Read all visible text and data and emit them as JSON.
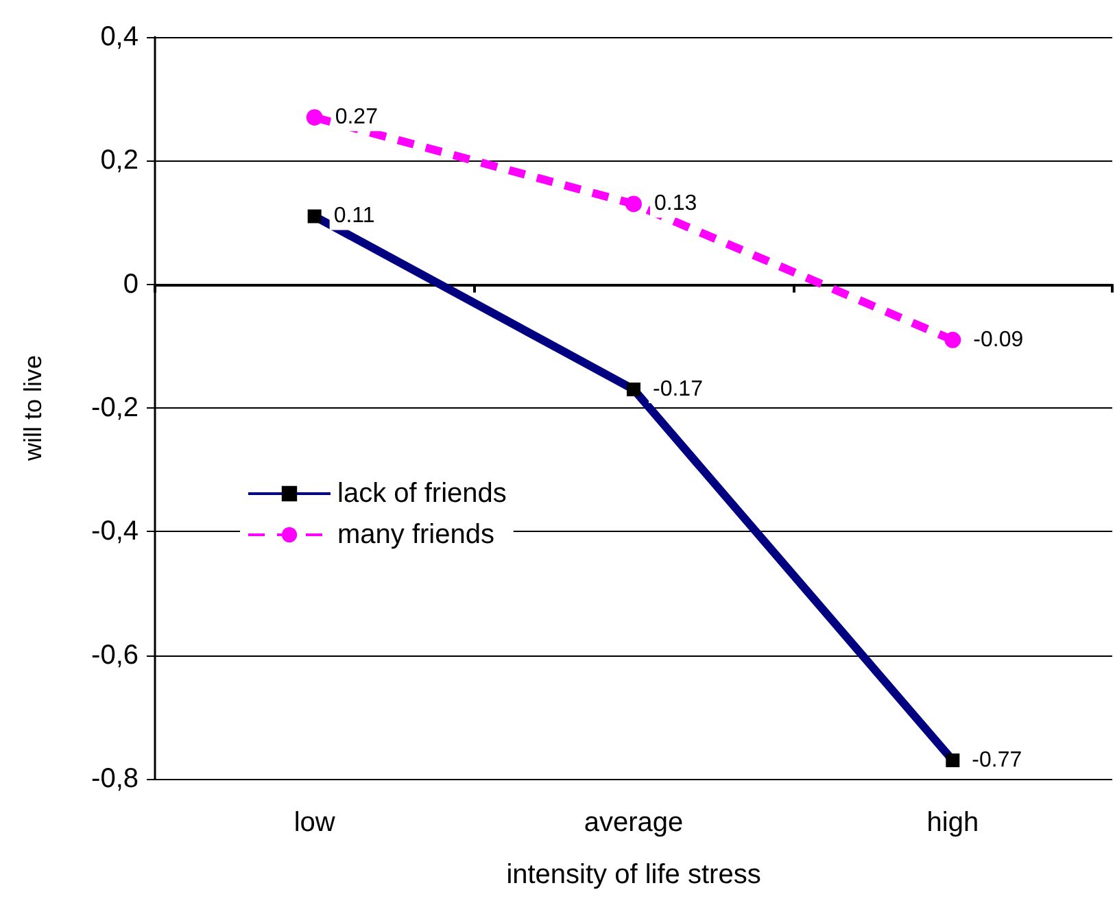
{
  "chart_data": {
    "type": "line",
    "xlabel": "intensity of life stress",
    "ylabel": "will to live",
    "categories": [
      "low",
      "average",
      "high"
    ],
    "series": [
      {
        "name": "lack of friends",
        "color": "#000080",
        "values": [
          0.11,
          -0.17,
          -0.77
        ],
        "marker": "square",
        "line_style": "solid"
      },
      {
        "name": "many friends",
        "color": "#ff00ff",
        "values": [
          0.27,
          0.13,
          -0.09
        ],
        "marker": "circle",
        "line_style": "dashed"
      }
    ],
    "ylim": [
      -0.8,
      0.4
    ],
    "yticks": [
      {
        "value": -0.8,
        "label": "-0,8"
      },
      {
        "value": -0.6,
        "label": "-0,6"
      },
      {
        "value": -0.4,
        "label": "-0,4"
      },
      {
        "value": -0.2,
        "label": "-0,2"
      },
      0,
      {
        "value": 0.2,
        "label": "0,2"
      },
      {
        "value": 0.4,
        "label": "0,4"
      }
    ],
    "grid": "y",
    "legend": "left",
    "data_labels": true
  }
}
